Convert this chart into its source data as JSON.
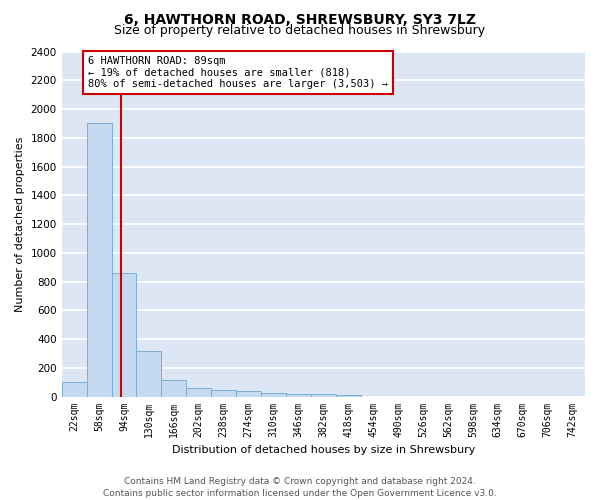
{
  "title": "6, HAWTHORN ROAD, SHREWSBURY, SY3 7LZ",
  "subtitle": "Size of property relative to detached houses in Shrewsbury",
  "xlabel": "Distribution of detached houses by size in Shrewsbury",
  "ylabel": "Number of detached properties",
  "bar_color": "#c5d9f0",
  "bar_edge_color": "#7bafd4",
  "background_color": "#dce6f5",
  "grid_color": "white",
  "annotation_box_color": "#cc0000",
  "vline_color": "#cc0000",
  "vline_x": 89,
  "annotation_text": "6 HAWTHORN ROAD: 89sqm\n← 19% of detached houses are smaller (818)\n80% of semi-detached houses are larger (3,503) →",
  "categories": [
    "22sqm",
    "58sqm",
    "94sqm",
    "130sqm",
    "166sqm",
    "202sqm",
    "238sqm",
    "274sqm",
    "310sqm",
    "346sqm",
    "382sqm",
    "418sqm",
    "454sqm",
    "490sqm",
    "526sqm",
    "562sqm",
    "598sqm",
    "634sqm",
    "670sqm",
    "706sqm",
    "742sqm"
  ],
  "bin_left": [
    4,
    40,
    76,
    112,
    148,
    184,
    220,
    256,
    292,
    328,
    364,
    400,
    436,
    472,
    508,
    544,
    580,
    616,
    652,
    688,
    724
  ],
  "bin_width": 36,
  "values": [
    100,
    1900,
    860,
    315,
    115,
    58,
    48,
    40,
    25,
    20,
    15,
    10,
    0,
    0,
    0,
    0,
    0,
    0,
    0,
    0,
    0
  ],
  "ylim": [
    0,
    2400
  ],
  "yticks": [
    0,
    200,
    400,
    600,
    800,
    1000,
    1200,
    1400,
    1600,
    1800,
    2000,
    2200,
    2400
  ],
  "xlim_left": 4,
  "xlim_right": 760,
  "footer_text": "Contains HM Land Registry data © Crown copyright and database right 2024.\nContains public sector information licensed under the Open Government Licence v3.0.",
  "title_fontsize": 10,
  "subtitle_fontsize": 9,
  "label_fontsize": 8,
  "tick_fontsize": 7,
  "footer_fontsize": 6.5
}
